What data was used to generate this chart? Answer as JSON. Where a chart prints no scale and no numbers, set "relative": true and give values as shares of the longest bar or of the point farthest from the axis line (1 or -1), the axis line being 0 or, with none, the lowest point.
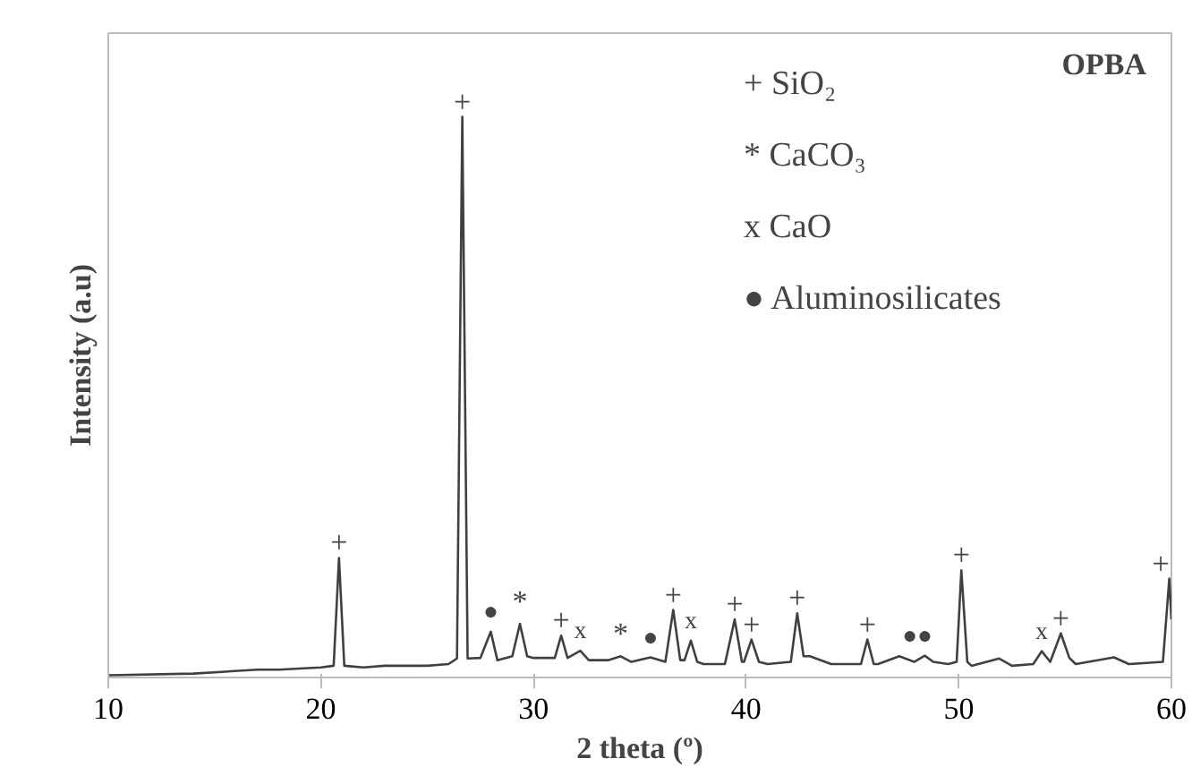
{
  "chart_data": {
    "type": "line",
    "title": "OPBA",
    "xlabel": "2 theta (º)",
    "ylabel": "Intensity (a.u)",
    "relative": true,
    "xlim": [
      10,
      60
    ],
    "xticks": [
      10,
      20,
      30,
      40,
      50,
      60
    ],
    "grid": false,
    "series": [
      {
        "color": "#404040",
        "x": [
          10,
          14,
          17,
          18,
          19,
          20,
          20.6,
          20.85,
          21.1,
          22,
          23,
          24,
          25,
          26,
          26.4,
          26.65,
          26.9,
          27.5,
          27.99,
          28.3,
          29.0,
          29.36,
          29.7,
          30.0,
          31.0,
          31.3,
          31.6,
          32.2,
          32.6,
          33.5,
          34.1,
          34.6,
          35.5,
          36.2,
          36.57,
          36.9,
          37.1,
          37.4,
          37.7,
          38.0,
          39.0,
          39.46,
          39.8,
          39.9,
          40.25,
          40.6,
          41.0,
          42.1,
          42.4,
          42.7,
          43.0,
          44.0,
          45.4,
          45.7,
          46.0,
          46.2,
          47.2,
          47.9,
          48.4,
          48.8,
          49.5,
          49.9,
          50.12,
          50.4,
          50.6,
          51.9,
          52.5,
          53.5,
          53.9,
          54.3,
          54.8,
          55.2,
          55.5,
          57.3,
          58.0,
          59.6,
          59.9,
          60.0
        ],
        "values": [
          0,
          0.003,
          0.01,
          0.01,
          0.012,
          0.014,
          0.017,
          0.21,
          0.017,
          0.014,
          0.017,
          0.017,
          0.017,
          0.02,
          0.03,
          1,
          0.03,
          0.031,
          0.078,
          0.027,
          0.034,
          0.092,
          0.034,
          0.031,
          0.031,
          0.071,
          0.031,
          0.044,
          0.027,
          0.027,
          0.034,
          0.024,
          0.032,
          0.024,
          0.117,
          0.027,
          0.027,
          0.062,
          0.024,
          0.02,
          0.02,
          0.1,
          0.024,
          0.024,
          0.064,
          0.024,
          0.02,
          0.024,
          0.111,
          0.034,
          0.034,
          0.02,
          0.02,
          0.064,
          0.02,
          0.02,
          0.034,
          0.024,
          0.035,
          0.024,
          0.02,
          0.024,
          0.188,
          0.024,
          0.017,
          0.03,
          0.017,
          0.02,
          0.043,
          0.024,
          0.075,
          0.031,
          0.02,
          0.032,
          0.02,
          0.024,
          0.173,
          0.1
        ]
      }
    ],
    "annotations": [
      {
        "text": "+",
        "x": 20.85,
        "y": 0.21
      },
      {
        "text": "+",
        "x": 26.65,
        "y": 1
      },
      {
        "text": "●",
        "x": 27.99,
        "y": 0.078
      },
      {
        "text": "*",
        "x": 29.36,
        "y": 0.092
      },
      {
        "text": "+",
        "x": 31.3,
        "y": 0.071
      },
      {
        "text": "x",
        "x": 32.2,
        "y": 0.044
      },
      {
        "text": "*",
        "x": 34.1,
        "y": 0.034
      },
      {
        "text": "●",
        "x": 35.5,
        "y": 0.032
      },
      {
        "text": "+",
        "x": 36.57,
        "y": 0.117
      },
      {
        "text": "x",
        "x": 37.4,
        "y": 0.062
      },
      {
        "text": "+",
        "x": 39.46,
        "y": 0.1
      },
      {
        "text": "+",
        "x": 40.25,
        "y": 0.064
      },
      {
        "text": "+",
        "x": 42.4,
        "y": 0.111
      },
      {
        "text": "+",
        "x": 45.7,
        "y": 0.064
      },
      {
        "text": "●",
        "x": 47.7,
        "y": 0.035
      },
      {
        "text": "●",
        "x": 48.4,
        "y": 0.035
      },
      {
        "text": "+",
        "x": 50.12,
        "y": 0.188
      },
      {
        "text": "x",
        "x": 53.9,
        "y": 0.043
      },
      {
        "text": "+",
        "x": 54.8,
        "y": 0.075
      },
      {
        "text": "+",
        "x": 59.9,
        "y": 0.173
      },
      "+ SiO₂",
      "* CaCO₃",
      "x CaO",
      "● Aluminosilicates"
    ]
  }
}
